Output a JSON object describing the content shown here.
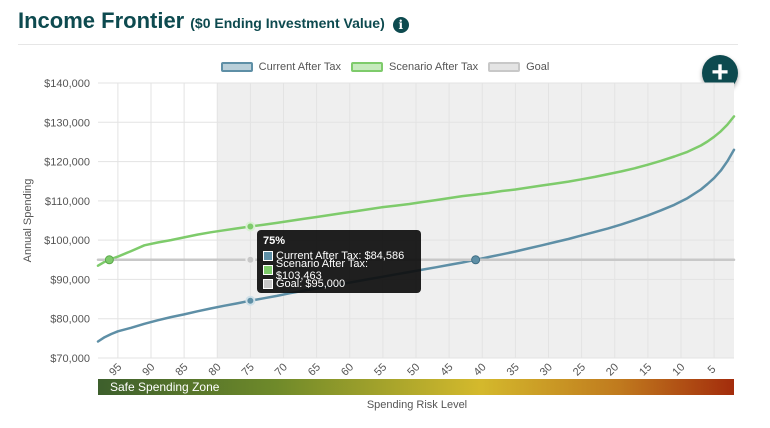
{
  "header": {
    "title": "Income Frontier",
    "subtitle": "($0 Ending Investment Value)",
    "info_icon": "info-circle-icon",
    "add_icon": "plus-icon"
  },
  "colors": {
    "current": "#5e8fa6",
    "scenario": "#7ecb6b",
    "goal": "#c8c8c8",
    "brand": "#0d4a4f"
  },
  "tooltip": {
    "title": "75%",
    "current": "Current After Tax: $84,586",
    "scenario": "Scenario After Tax: $103,463",
    "goal": "Goal: $95,000"
  },
  "zone_label": "Safe Spending Zone",
  "chart_data": {
    "type": "line",
    "xlabel": "Spending Risk Level",
    "ylabel": "Annual Spending",
    "x_reversed": true,
    "xlim": [
      98,
      2
    ],
    "ylim": [
      70000,
      140000
    ],
    "y_ticks": [
      70000,
      80000,
      90000,
      100000,
      110000,
      120000,
      130000,
      140000
    ],
    "y_tick_labels": [
      "$70,000",
      "$80,000",
      "$90,000",
      "$100,000",
      "$110,000",
      "$120,000",
      "$130,000",
      "$140,000"
    ],
    "x_ticks": [
      95,
      90,
      85,
      80,
      75,
      70,
      65,
      60,
      55,
      50,
      45,
      40,
      35,
      30,
      25,
      20,
      15,
      10,
      5
    ],
    "x_tick_labels": [
      "95",
      "90",
      "85",
      "80",
      "75",
      "70",
      "65",
      "60",
      "55",
      "50",
      "45",
      "40",
      "35",
      "30",
      "25",
      "20",
      "15",
      "10",
      "5"
    ],
    "grid": true,
    "legend_position": "top-center",
    "shaded_region_x": [
      80,
      2
    ],
    "hover_x": 75,
    "series": [
      {
        "name": "Current After Tax",
        "x": [
          98,
          97,
          96,
          95,
          93,
          91,
          89,
          87,
          85,
          83,
          81,
          79,
          77,
          75,
          73,
          71,
          69,
          67,
          65,
          63,
          61,
          59,
          57,
          55,
          53,
          51,
          49,
          47,
          45,
          43,
          41,
          39,
          37,
          35,
          33,
          31,
          29,
          27,
          25,
          23,
          21,
          19,
          17,
          15,
          13,
          11,
          9,
          7,
          6,
          5,
          4,
          3,
          2
        ],
        "y": [
          74200,
          75300,
          76100,
          76800,
          77700,
          78700,
          79600,
          80400,
          81100,
          81900,
          82600,
          83300,
          83900,
          84586,
          85200,
          85800,
          86500,
          87100,
          87700,
          88300,
          88900,
          89500,
          90100,
          90700,
          91300,
          91900,
          92500,
          93100,
          93700,
          94300,
          95000,
          95700,
          96400,
          97100,
          97900,
          98700,
          99500,
          100300,
          101200,
          102100,
          103000,
          104000,
          105100,
          106300,
          107600,
          109000,
          110700,
          112900,
          114300,
          115800,
          117700,
          120100,
          123000
        ]
      },
      {
        "name": "Scenario After Tax",
        "x": [
          98,
          97,
          96,
          95,
          93,
          91,
          89,
          87,
          85,
          83,
          81,
          79,
          77,
          75,
          73,
          71,
          69,
          67,
          65,
          63,
          61,
          59,
          57,
          55,
          53,
          51,
          49,
          47,
          45,
          43,
          41,
          39,
          37,
          35,
          33,
          31,
          29,
          27,
          25,
          23,
          21,
          19,
          17,
          15,
          13,
          11,
          9,
          7,
          6,
          5,
          4,
          3,
          2
        ],
        "y": [
          93500,
          94500,
          95200,
          95800,
          97200,
          98700,
          99400,
          100000,
          100700,
          101400,
          102000,
          102500,
          103000,
          103463,
          103900,
          104400,
          104900,
          105400,
          105900,
          106400,
          106900,
          107400,
          107900,
          108400,
          108800,
          109200,
          109700,
          110200,
          110700,
          111200,
          111600,
          112000,
          112500,
          112900,
          113400,
          113900,
          114400,
          114900,
          115500,
          116100,
          116800,
          117500,
          118300,
          119200,
          120200,
          121300,
          122500,
          124100,
          125100,
          126300,
          127700,
          129400,
          131500
        ]
      },
      {
        "name": "Goal",
        "x": [
          98,
          2
        ],
        "y": [
          95000,
          95000
        ]
      }
    ]
  }
}
